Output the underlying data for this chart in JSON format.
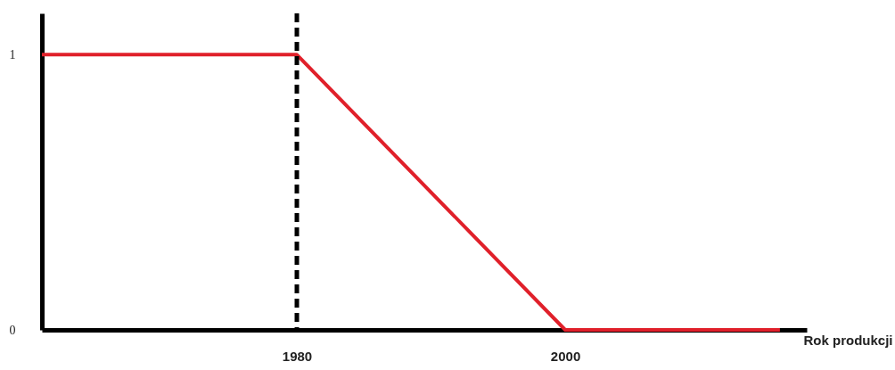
{
  "chart_data": {
    "type": "line",
    "xlabel": "Rok produkcji",
    "x": [
      1961,
      1980,
      2000,
      2016
    ],
    "values": [
      1,
      1,
      0,
      0
    ],
    "color": "#e0202a",
    "xlim": [
      1961,
      2018
    ],
    "ylim": [
      0,
      1.15
    ],
    "xticks": [
      1980,
      2000
    ],
    "yticks": [
      0,
      1
    ],
    "ref_lines": [
      {
        "axis": "x",
        "value": 1980,
        "color": "#000000",
        "line_style": "dashed"
      }
    ]
  }
}
